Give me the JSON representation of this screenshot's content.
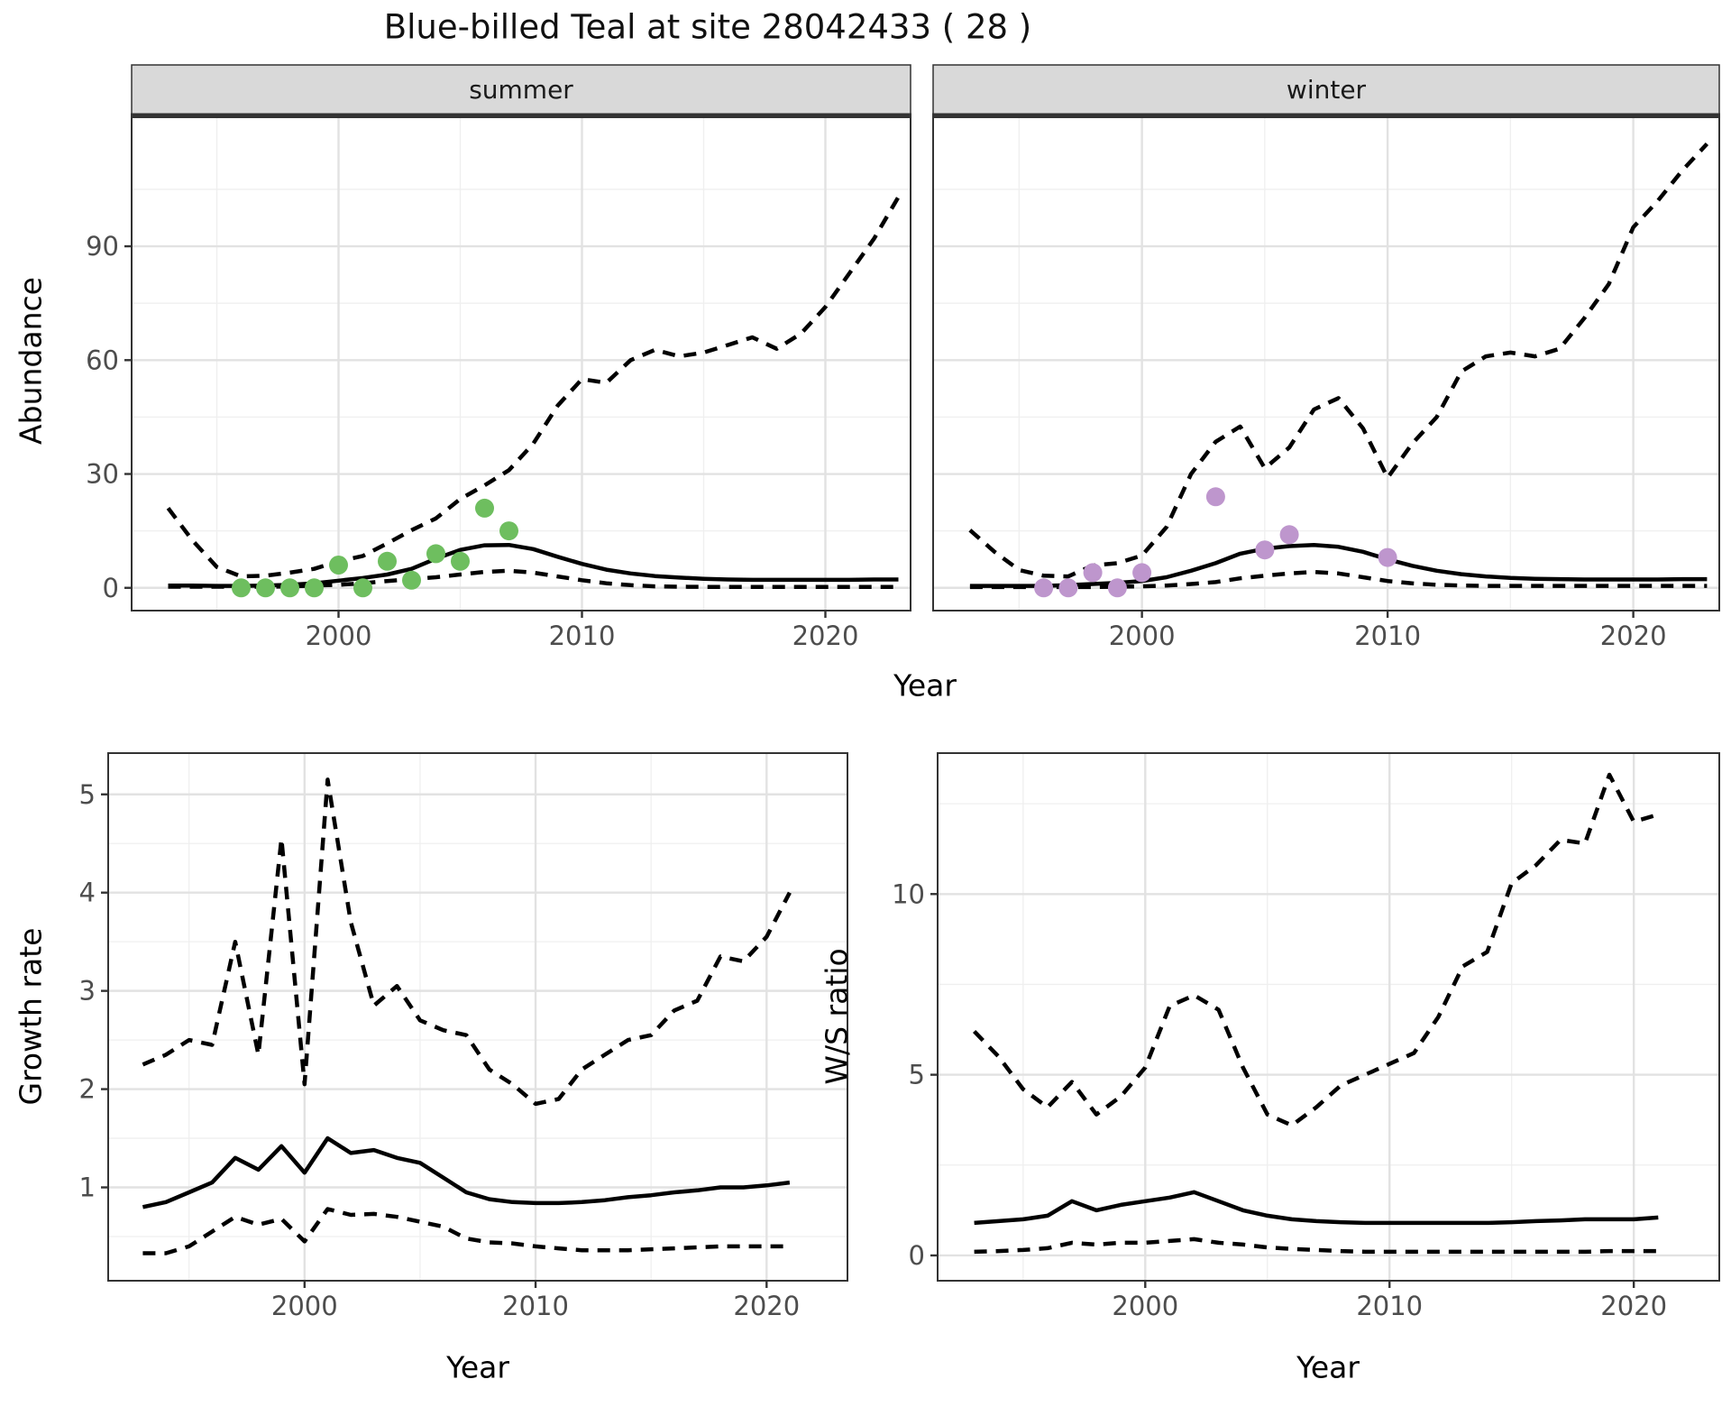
{
  "title": "Blue-billed Teal at site 28042433 ( 28 )",
  "colors": {
    "summer_points": "#6ebe5f",
    "winter_points": "#be96cd",
    "line": "#000000",
    "grid_major": "#e2e2e2",
    "grid_minor": "#efefef",
    "strip_bg": "#d9d9d9",
    "strip_border": "#333333",
    "panel_border": "#333333",
    "tick_label": "#4d4d4d",
    "panel_bg": "#ffffff"
  },
  "chart_data": [
    {
      "id": "abundance-summer",
      "type": "line",
      "facet": "summer",
      "xlabel": "Year",
      "ylabel": "Abundance",
      "xlim": [
        1991.5,
        2023.5
      ],
      "ylim": [
        -6,
        124
      ],
      "x_ticks": [
        2000,
        2010,
        2020
      ],
      "x_minor": [
        1995,
        2005,
        2015
      ],
      "y_ticks": [
        0,
        30,
        60,
        90
      ],
      "y_minor": [
        15,
        45,
        75,
        105
      ],
      "show_y_labels": true,
      "x": [
        1993,
        1994,
        1995,
        1996,
        1997,
        1998,
        1999,
        2000,
        2001,
        2002,
        2003,
        2004,
        2005,
        2006,
        2007,
        2008,
        2009,
        2010,
        2011,
        2012,
        2013,
        2014,
        2015,
        2016,
        2017,
        2018,
        2019,
        2020,
        2021,
        2022,
        2023
      ],
      "series": [
        {
          "name": "upper_95ci",
          "style": "dashed",
          "values": [
            21,
            12.5,
            5.5,
            3.0,
            3.2,
            4.0,
            5.0,
            7.0,
            8.4,
            11.7,
            15.2,
            18.3,
            23.4,
            27,
            31,
            38,
            48,
            55,
            54,
            60,
            62.7,
            61,
            62,
            64,
            66,
            63,
            67,
            74,
            83,
            92,
            103
          ]
        },
        {
          "name": "lower_95ci",
          "style": "dashed",
          "values": [
            0.3,
            0.3,
            0.3,
            0.3,
            0.3,
            0.35,
            0.6,
            0.8,
            1.2,
            1.8,
            2.3,
            2.8,
            3.5,
            4.2,
            4.5,
            4.0,
            3.0,
            2.0,
            1.2,
            0.7,
            0.4,
            0.3,
            0.25,
            0.25,
            0.25,
            0.25,
            0.25,
            0.25,
            0.25,
            0.25,
            0.25
          ]
        },
        {
          "name": "median",
          "style": "solid",
          "values": [
            0.6,
            0.6,
            0.5,
            0.5,
            0.6,
            0.8,
            1.2,
            1.9,
            2.6,
            3.5,
            5.0,
            7.7,
            10.0,
            11.2,
            11.3,
            10.2,
            8.2,
            6.3,
            4.8,
            3.8,
            3.1,
            2.7,
            2.4,
            2.2,
            2.1,
            2.1,
            2.1,
            2.1,
            2.1,
            2.2,
            2.2
          ]
        }
      ],
      "points": {
        "name": "observed-counts-summer",
        "color_key": "summer_points",
        "x": [
          1996,
          1997,
          1998,
          1999,
          2000,
          2001,
          2002,
          2003,
          2004,
          2005,
          2006,
          2007
        ],
        "y": [
          0,
          0,
          0,
          0,
          6,
          0,
          7,
          2,
          9,
          7,
          21,
          15
        ]
      }
    },
    {
      "id": "abundance-winter",
      "type": "line",
      "facet": "winter",
      "xlabel": "Year",
      "ylabel": "Abundance",
      "xlim": [
        1991.5,
        2023.5
      ],
      "ylim": [
        -6,
        124
      ],
      "x_ticks": [
        2000,
        2010,
        2020
      ],
      "x_minor": [
        1995,
        2005,
        2015
      ],
      "y_ticks": [
        0,
        30,
        60,
        90
      ],
      "y_minor": [
        15,
        45,
        75,
        105
      ],
      "show_y_labels": false,
      "x": [
        1993,
        1994,
        1995,
        1996,
        1997,
        1998,
        1999,
        2000,
        2001,
        2002,
        2003,
        2004,
        2005,
        2006,
        2007,
        2008,
        2009,
        2010,
        2011,
        2012,
        2013,
        2014,
        2015,
        2016,
        2017,
        2018,
        2019,
        2020,
        2021,
        2022,
        2023
      ],
      "series": [
        {
          "name": "upper_95ci",
          "style": "dashed",
          "values": [
            15.2,
            9.5,
            4.7,
            3.2,
            3.0,
            5.9,
            6.5,
            8.5,
            16,
            30,
            38.5,
            42.5,
            31.5,
            37,
            47,
            50,
            42,
            29,
            38,
            45,
            57,
            61,
            62,
            61,
            63,
            71,
            80,
            95,
            102,
            110,
            117
          ]
        },
        {
          "name": "lower_95ci",
          "style": "dashed",
          "values": [
            0.2,
            0.2,
            0.2,
            0.2,
            0.2,
            0.2,
            0.3,
            0.4,
            0.6,
            1.0,
            1.5,
            2.5,
            3.2,
            3.8,
            4.2,
            3.8,
            2.8,
            1.8,
            1.2,
            0.8,
            0.6,
            0.5,
            0.5,
            0.5,
            0.5,
            0.5,
            0.5,
            0.5,
            0.5,
            0.5,
            0.5
          ]
        },
        {
          "name": "median",
          "style": "solid",
          "values": [
            0.5,
            0.5,
            0.5,
            0.5,
            0.7,
            1.0,
            1.3,
            1.8,
            2.8,
            4.5,
            6.5,
            9.0,
            10.3,
            11.0,
            11.3,
            10.8,
            9.5,
            7.5,
            5.8,
            4.5,
            3.6,
            3.0,
            2.6,
            2.4,
            2.3,
            2.2,
            2.2,
            2.2,
            2.2,
            2.3,
            2.3
          ]
        }
      ],
      "points": {
        "name": "observed-counts-winter",
        "color_key": "winter_points",
        "x": [
          1996,
          1997,
          1998,
          1999,
          2000,
          2003,
          2005,
          2006,
          2010
        ],
        "y": [
          0,
          0,
          4,
          0,
          4,
          24,
          10,
          14,
          8
        ]
      }
    },
    {
      "id": "growth-rate",
      "type": "line",
      "facet": null,
      "xlabel": "Year",
      "ylabel": "Growth rate",
      "xlim": [
        1991.5,
        2023.5
      ],
      "ylim": [
        0.05,
        5.42
      ],
      "x_ticks": [
        2000,
        2010,
        2020
      ],
      "x_minor": [
        1995,
        2005,
        2015
      ],
      "y_ticks": [
        1,
        2,
        3,
        4,
        5
      ],
      "y_minor": [
        0.5,
        1.5,
        2.5,
        3.5,
        4.5
      ],
      "show_y_labels": true,
      "x": [
        1993,
        1994,
        1995,
        1996,
        1997,
        1998,
        1999,
        2000,
        2001,
        2002,
        2003,
        2004,
        2005,
        2006,
        2007,
        2008,
        2009,
        2010,
        2011,
        2012,
        2013,
        2014,
        2015,
        2016,
        2017,
        2018,
        2019,
        2020,
        2021
      ],
      "series": [
        {
          "name": "upper_95ci",
          "style": "dashed",
          "values": [
            2.25,
            2.35,
            2.5,
            2.45,
            3.5,
            2.35,
            4.55,
            2.05,
            5.15,
            3.7,
            2.85,
            3.05,
            2.7,
            2.6,
            2.55,
            2.2,
            2.05,
            1.85,
            1.9,
            2.2,
            2.35,
            2.5,
            2.55,
            2.8,
            2.9,
            3.35,
            3.3,
            3.55,
            4.0
          ]
        },
        {
          "name": "lower_95ci",
          "style": "dashed",
          "values": [
            0.33,
            0.33,
            0.4,
            0.55,
            0.7,
            0.62,
            0.68,
            0.45,
            0.78,
            0.72,
            0.73,
            0.7,
            0.65,
            0.6,
            0.48,
            0.44,
            0.43,
            0.4,
            0.38,
            0.36,
            0.36,
            0.36,
            0.37,
            0.38,
            0.39,
            0.4,
            0.4,
            0.4,
            0.4
          ]
        },
        {
          "name": "median",
          "style": "solid",
          "values": [
            0.8,
            0.85,
            0.95,
            1.05,
            1.3,
            1.18,
            1.42,
            1.15,
            1.5,
            1.35,
            1.38,
            1.3,
            1.25,
            1.1,
            0.95,
            0.88,
            0.85,
            0.84,
            0.84,
            0.85,
            0.87,
            0.9,
            0.92,
            0.95,
            0.97,
            1.0,
            1.0,
            1.02,
            1.05
          ]
        }
      ],
      "points": null
    },
    {
      "id": "ws-ratio",
      "type": "line",
      "facet": null,
      "xlabel": "Year",
      "ylabel": "W/S ratio",
      "xlim": [
        1991.5,
        2023.5
      ],
      "ylim": [
        -0.7,
        13.9
      ],
      "x_ticks": [
        2000,
        2010,
        2020
      ],
      "x_minor": [
        1995,
        2005,
        2015
      ],
      "y_ticks": [
        0,
        5,
        10
      ],
      "y_minor": [
        2.5,
        7.5,
        12.5
      ],
      "show_y_labels": true,
      "x": [
        1993,
        1994,
        1995,
        1996,
        1997,
        1998,
        1999,
        2000,
        2001,
        2002,
        2003,
        2004,
        2005,
        2006,
        2007,
        2008,
        2009,
        2010,
        2011,
        2012,
        2013,
        2014,
        2015,
        2016,
        2017,
        2018,
        2019,
        2020,
        2021
      ],
      "series": [
        {
          "name": "upper_95ci",
          "style": "dashed",
          "values": [
            6.2,
            5.5,
            4.6,
            4.1,
            4.8,
            3.9,
            4.4,
            5.2,
            6.9,
            7.2,
            6.8,
            5.2,
            3.9,
            3.6,
            4.1,
            4.7,
            5.0,
            5.3,
            5.6,
            6.6,
            8.0,
            8.4,
            10.3,
            10.8,
            11.5,
            11.4,
            13.3,
            12.0,
            12.2
          ]
        },
        {
          "name": "lower_95ci",
          "style": "dashed",
          "values": [
            0.1,
            0.12,
            0.15,
            0.2,
            0.35,
            0.3,
            0.35,
            0.35,
            0.4,
            0.45,
            0.35,
            0.3,
            0.22,
            0.18,
            0.15,
            0.12,
            0.1,
            0.1,
            0.1,
            0.1,
            0.1,
            0.1,
            0.1,
            0.1,
            0.1,
            0.1,
            0.12,
            0.12,
            0.12
          ]
        },
        {
          "name": "median",
          "style": "solid",
          "values": [
            0.9,
            0.95,
            1.0,
            1.1,
            1.5,
            1.25,
            1.4,
            1.5,
            1.6,
            1.75,
            1.5,
            1.25,
            1.1,
            1.0,
            0.95,
            0.92,
            0.9,
            0.9,
            0.9,
            0.9,
            0.9,
            0.9,
            0.92,
            0.95,
            0.97,
            1.0,
            1.0,
            1.0,
            1.05
          ]
        }
      ],
      "points": null
    }
  ]
}
